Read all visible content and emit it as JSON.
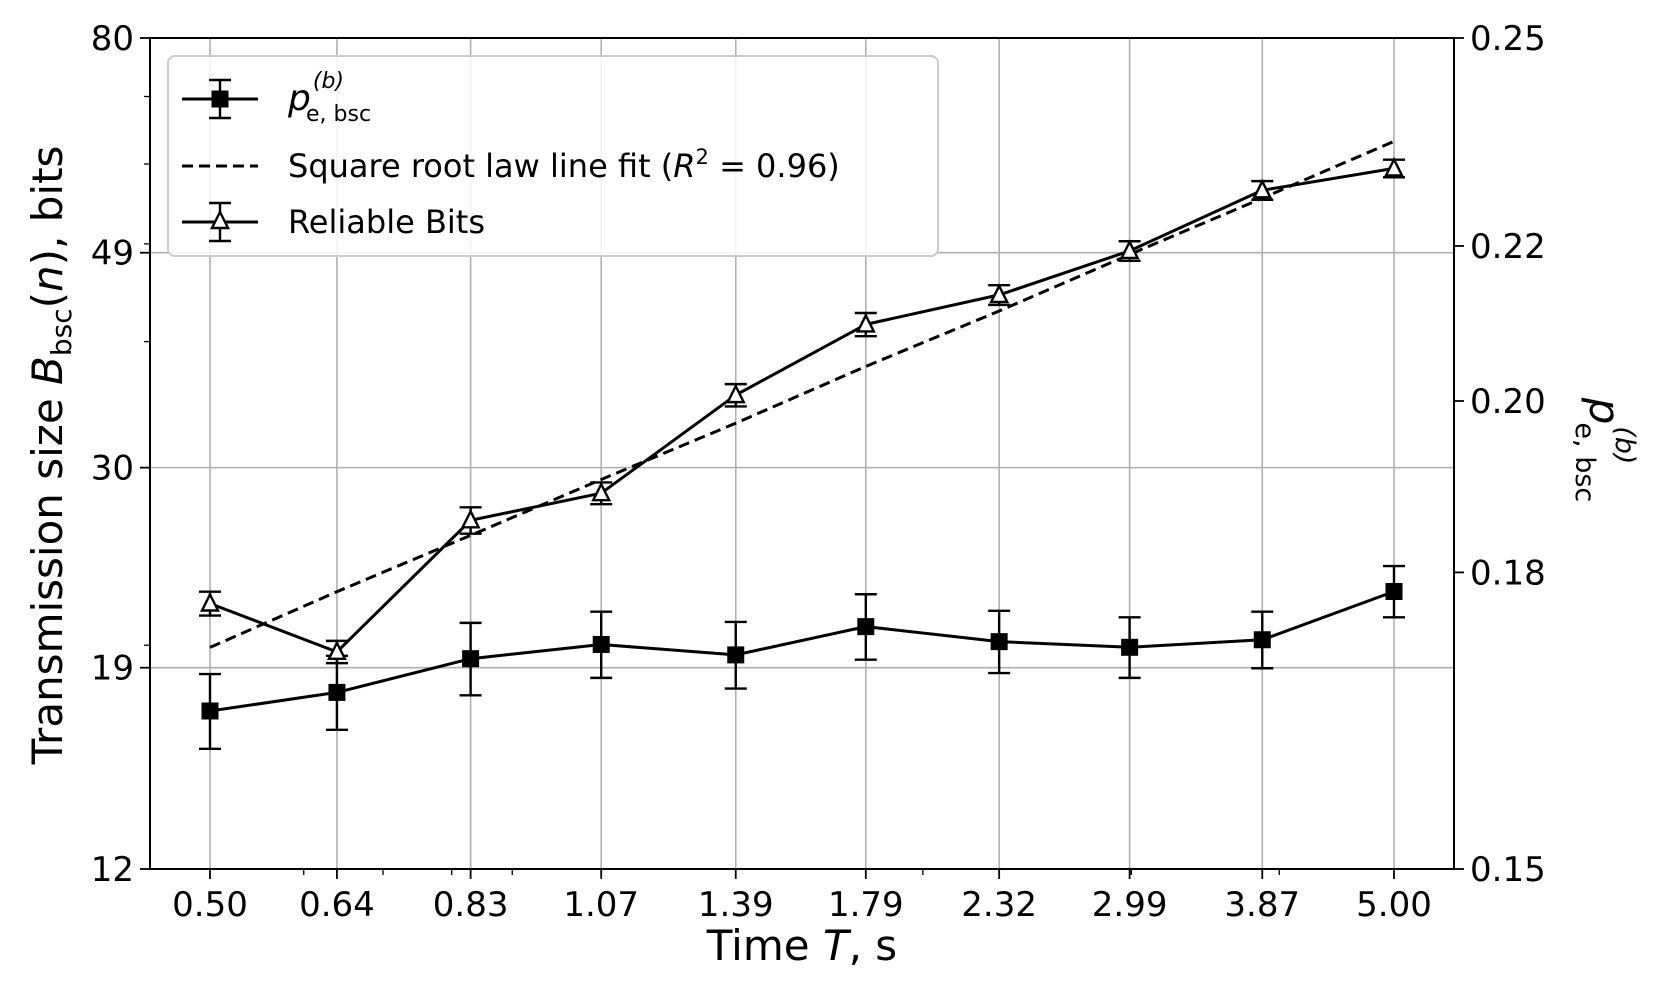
{
  "chart_data": {
    "type": "line",
    "x_scale": "log",
    "y_scale": "log",
    "categories": [
      "0.50",
      "0.64",
      "0.83",
      "1.07",
      "1.39",
      "1.79",
      "2.32",
      "2.99",
      "3.87",
      "5.00"
    ],
    "x": [
      0.5,
      0.64,
      0.83,
      1.07,
      1.39,
      1.79,
      2.32,
      2.99,
      3.87,
      5.0
    ],
    "xlabel": "Time T, s",
    "ylabel": "Transmission size B_bsc(n), bits",
    "y2label": "p_e,bsc^(b)",
    "ylim": [
      12,
      80
    ],
    "y2lim": [
      0.15,
      0.25
    ],
    "yticks": [
      12,
      19,
      30,
      49,
      80
    ],
    "y2ticks": [
      0.15,
      0.18,
      0.2,
      0.22,
      0.25
    ],
    "ytick_labels": [
      "12",
      "19",
      "30",
      "49",
      "80"
    ],
    "y2tick_labels": [
      "0.15",
      "0.18",
      "0.20",
      "0.22",
      "0.25"
    ],
    "grid": true,
    "legend_position": "top-left",
    "series": [
      {
        "name": "p_e,bsc^(b)",
        "axis": "right",
        "marker": "square",
        "values": [
          0.1653,
          0.1672,
          0.1707,
          0.1722,
          0.1711,
          0.1741,
          0.1725,
          0.1719,
          0.1727,
          0.1779
        ],
        "err": [
          0.0038,
          0.0038,
          0.0038,
          0.0035,
          0.0035,
          0.0035,
          0.0033,
          0.0032,
          0.003,
          0.0028
        ]
      },
      {
        "name": "Square root law line fit (R^2 = 0.96)",
        "axis": "left",
        "style": "dashed",
        "values": [
          19.9,
          22.6,
          25.7,
          29.2,
          33.2,
          37.8,
          42.9,
          48.8,
          55.5,
          63.2
        ]
      },
      {
        "name": "Reliable Bits",
        "axis": "left",
        "marker": "triangle",
        "values": [
          22.0,
          19.7,
          26.6,
          28.3,
          35.4,
          41.6,
          44.5,
          49.2,
          56.5,
          59.4
        ],
        "err": [
          0.6,
          0.5,
          0.8,
          0.7,
          0.9,
          1.1,
          1.0,
          1.1,
          1.2,
          1.2
        ]
      }
    ]
  },
  "legend": {
    "p_series": {
      "base": "p",
      "sup": "(b)",
      "sub": "e, bsc"
    },
    "fit_series": {
      "label": "Square root law line fit (",
      "r": "R",
      "two": "2",
      "rest": " = 0.96)"
    },
    "reliable_series": "Reliable Bits"
  },
  "axes": {
    "x_title": {
      "pre": "Time ",
      "var": "T",
      "post": ", s"
    },
    "y_title": {
      "pre": "Transmission size ",
      "var": "B",
      "sub": "bsc",
      "mid": "(",
      "n": "n",
      "post": "), bits"
    },
    "y2_title": {
      "var": "p",
      "sub": "e, bsc",
      "sup": "(b)"
    }
  }
}
